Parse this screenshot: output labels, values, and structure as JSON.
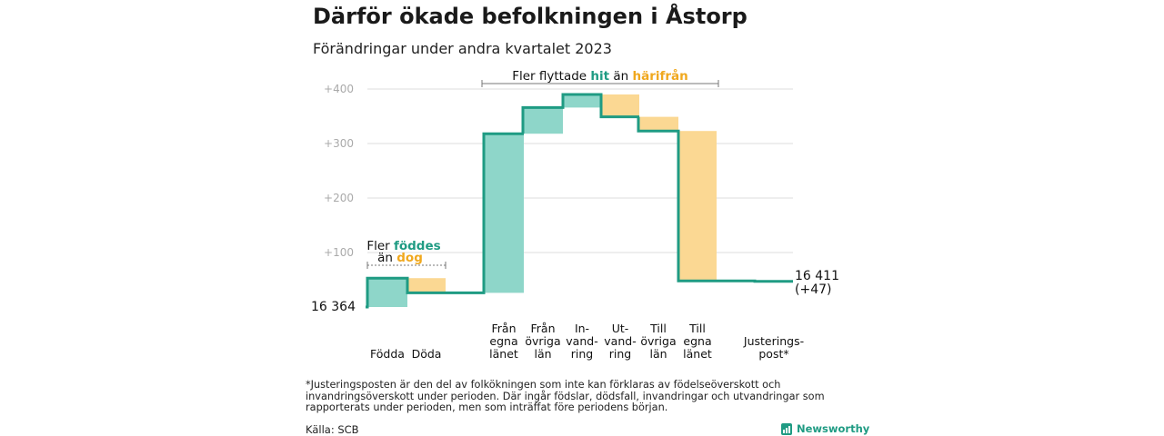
{
  "title": "Därför ökade befolkningen i Åstorp",
  "subtitle": "Förändringar under andra kvartalet 2023",
  "footnote": "*Justeringsposten är den del av folkökningen som inte kan förklaras av födelseöverskott och invandringsöverskott under perioden. Där ingår födslar, dödsfall, invandringar och utvandringar som rapporterats under perioden, men som inträffat före periodens början.",
  "source": "Källa: SCB",
  "brand": "Newsworthy",
  "colors": {
    "line": "#1f9b83",
    "increase": "#8ed6c9",
    "decrease": "#fbd893",
    "hit_text": "#1f9b83",
    "harifran_text": "#f0a81e",
    "grid": "#dedede",
    "tick": "#aaaaaa"
  },
  "annotations": {
    "births": {
      "line1_prefix": "Fler ",
      "line1_hl": "föddes",
      "line2_prefix": "än ",
      "line2_hl": "dog"
    },
    "migration": {
      "prefix": "Fler flyttade ",
      "hl1": "hit",
      "mid": " än ",
      "hl2": "härifrån"
    }
  },
  "start_label": "16  364",
  "end_label": [
    "16 411",
    "(+47)"
  ],
  "chart_data": {
    "type": "waterfall",
    "start_value": 16364,
    "end_value": 16411,
    "ylim": [
      0,
      420
    ],
    "yticks": [
      {
        "value": 100,
        "label": "+100"
      },
      {
        "value": 200,
        "label": "+200"
      },
      {
        "value": 300,
        "label": "+300"
      },
      {
        "value": 400,
        "label": "+400"
      }
    ],
    "grid": true,
    "steps": [
      {
        "label": [
          "Födda"
        ],
        "delta": 53
      },
      {
        "label": [
          "Döda"
        ],
        "delta": -27
      },
      {
        "label": [
          "Från",
          "egna",
          "länet"
        ],
        "delta": 292
      },
      {
        "label": [
          "Från",
          "övriga",
          "län"
        ],
        "delta": 48
      },
      {
        "label": [
          "In-",
          "vand-",
          "ring"
        ],
        "delta": 24
      },
      {
        "label": [
          "Ut-",
          "vand-",
          "ring"
        ],
        "delta": -41
      },
      {
        "label": [
          "Till",
          "övriga",
          "län"
        ],
        "delta": -26
      },
      {
        "label": [
          "Till",
          "egna",
          "länet"
        ],
        "delta": -275
      },
      {
        "label": [
          "Justerings-",
          "post*"
        ],
        "delta": -1
      }
    ]
  }
}
